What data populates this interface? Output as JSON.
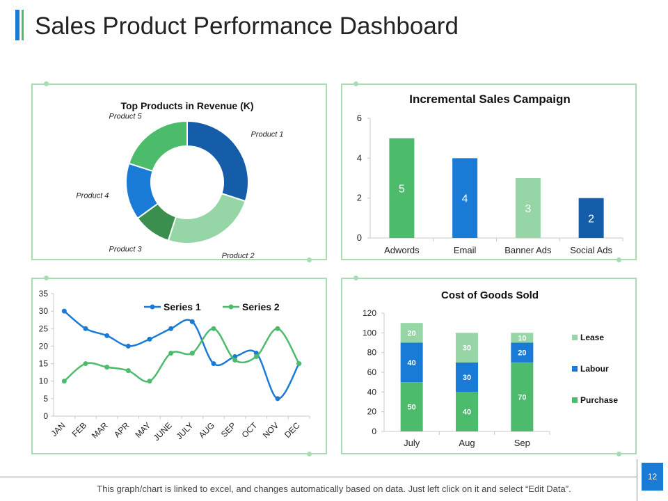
{
  "page": {
    "title": "Sales Product Performance Dashboard",
    "footer_note": "This graph/chart is linked to excel, and changes automatically based on data. Just left click on it and select “Edit Data”.",
    "page_number": "12"
  },
  "colors": {
    "dark_green": "#3a8f4f",
    "green": "#4cbb6c",
    "light_green": "#96d6a6",
    "blue": "#1a7bd6",
    "dark_blue": "#155da8",
    "panel_border": "#a8dcb2"
  },
  "chart_data": [
    {
      "type": "pie",
      "subtype": "donut",
      "title": "Top Products in Revenue (K)",
      "categories": [
        "Product 1",
        "Product 2",
        "Product 3",
        "Product 4",
        "Product 5"
      ],
      "values": [
        30,
        25,
        10,
        15,
        20
      ]
    },
    {
      "type": "bar",
      "title": "Incremental Sales Campaign",
      "categories": [
        "Adwords",
        "Email",
        "Banner Ads",
        "Social Ads"
      ],
      "values": [
        5,
        4,
        3,
        2
      ],
      "ylim": [
        0,
        6
      ],
      "yticks": [
        0,
        2,
        4,
        6
      ],
      "xlabel": "",
      "ylabel": ""
    },
    {
      "type": "line",
      "title": "",
      "categories": [
        "JAN",
        "FEB",
        "MAR",
        "APR",
        "MAY",
        "JUNE",
        "JULY",
        "AUG",
        "SEP",
        "OCT",
        "NOV",
        "DEC"
      ],
      "series": [
        {
          "name": "Series 1",
          "values": [
            30,
            25,
            23,
            20,
            22,
            25,
            27,
            15,
            17,
            18,
            5,
            15
          ]
        },
        {
          "name": "Series 2",
          "values": [
            10,
            15,
            14,
            13,
            10,
            18,
            18,
            25,
            16,
            17,
            25,
            15
          ]
        }
      ],
      "ylim": [
        0,
        35
      ],
      "yticks": [
        0,
        5,
        10,
        15,
        20,
        25,
        30,
        35
      ],
      "legend": "top"
    },
    {
      "type": "bar",
      "subtype": "stacked",
      "title": "Cost of Goods Sold",
      "categories": [
        "July",
        "Aug",
        "Sep"
      ],
      "series": [
        {
          "name": "Purchase",
          "values": [
            50,
            40,
            70
          ]
        },
        {
          "name": "Labour",
          "values": [
            40,
            30,
            20
          ]
        },
        {
          "name": "Lease",
          "values": [
            20,
            30,
            10
          ]
        }
      ],
      "ylim": [
        0,
        120
      ],
      "yticks": [
        0,
        20,
        40,
        60,
        80,
        100,
        120
      ],
      "legend": "right"
    }
  ]
}
